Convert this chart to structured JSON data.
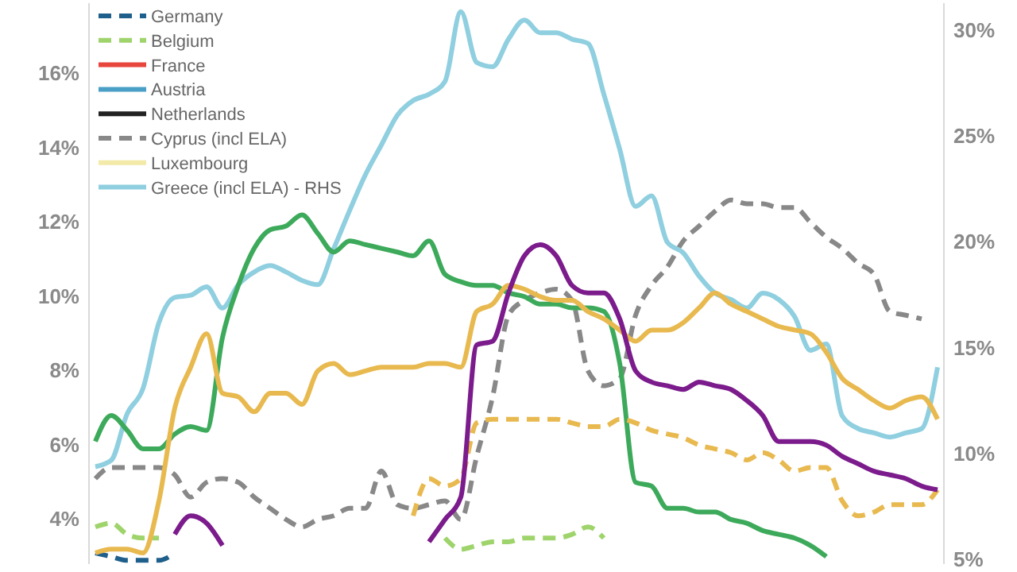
{
  "chart_data": {
    "type": "line",
    "categories": [
      null,
      null,
      null,
      null,
      null,
      null,
      null,
      null,
      null,
      null,
      null,
      null,
      null,
      null,
      null,
      null,
      null,
      null,
      null,
      null,
      null,
      null,
      null,
      null,
      null,
      null,
      null,
      null,
      null,
      null,
      null,
      null,
      null,
      null,
      null,
      null,
      null,
      null,
      null,
      null,
      null,
      null,
      null,
      null,
      null,
      null,
      null,
      null,
      null,
      null,
      null,
      null,
      null,
      null
    ],
    "ylim": [
      2.8,
      17.9
    ],
    "yticks": [
      {
        "value": 4,
        "label": "4%"
      },
      {
        "value": 6,
        "label": "6%"
      },
      {
        "value": 8,
        "label": "8%"
      },
      {
        "value": 10,
        "label": "10%"
      },
      {
        "value": 12,
        "label": "12%"
      },
      {
        "value": 14,
        "label": "14%"
      },
      {
        "value": 16,
        "label": "16%"
      }
    ],
    "y2lim": [
      4.8,
      31.3
    ],
    "y2ticks": [
      {
        "value": 5,
        "label": "5%"
      },
      {
        "value": 10,
        "label": "10%"
      },
      {
        "value": 15,
        "label": "15%"
      },
      {
        "value": 20,
        "label": "20%"
      },
      {
        "value": 25,
        "label": "25%"
      },
      {
        "value": 30,
        "label": "30%"
      }
    ],
    "legend": "top left",
    "grid": false,
    "series": [
      {
        "name": "Germany",
        "color": "#1f5f8b",
        "line_style": "dashed",
        "values": [
          3.1,
          3.0,
          2.9,
          2.9,
          2.9,
          3.1,
          null,
          null,
          null,
          null,
          null,
          null,
          null,
          null,
          null,
          null,
          null,
          null,
          null,
          null,
          null,
          null,
          null,
          null,
          null,
          null,
          null,
          null,
          null,
          null,
          null,
          null,
          null,
          null,
          null,
          null,
          null,
          null,
          null,
          null,
          null,
          null,
          null,
          null,
          null,
          null,
          null,
          null,
          null,
          null,
          null,
          null,
          null,
          null
        ]
      },
      {
        "name": "Belgium",
        "color": "#9ed46b",
        "line_style": "dashed",
        "values": [
          3.8,
          3.9,
          3.6,
          3.5,
          3.5,
          null,
          null,
          null,
          null,
          null,
          null,
          null,
          null,
          null,
          null,
          null,
          null,
          null,
          null,
          null,
          null,
          null,
          3.5,
          3.2,
          3.3,
          3.4,
          3.4,
          3.5,
          3.5,
          3.5,
          3.6,
          3.8,
          3.5,
          null,
          null,
          null,
          null,
          null,
          null,
          null,
          null,
          null,
          null,
          null,
          null,
          null,
          null,
          null,
          null,
          null,
          null,
          null,
          null,
          null
        ]
      },
      {
        "name": "France",
        "color": "#e8453c",
        "line_style": "solid",
        "values": [
          null,
          null,
          null,
          null,
          null,
          null,
          null,
          null,
          null,
          null,
          null,
          null,
          null,
          null,
          null,
          null,
          null,
          null,
          null,
          null,
          null,
          null,
          null,
          null,
          null,
          null,
          null,
          null,
          null,
          null,
          null,
          null,
          null,
          null,
          null,
          null,
          null,
          null,
          null,
          null,
          null,
          null,
          null,
          null,
          null,
          null,
          null,
          null,
          null,
          null,
          null,
          null,
          null,
          null
        ]
      },
      {
        "name": "Austria",
        "color": "#4a9fc6",
        "line_style": "solid",
        "values": [
          null,
          null,
          null,
          null,
          null,
          null,
          null,
          null,
          null,
          null,
          null,
          null,
          null,
          null,
          null,
          null,
          null,
          null,
          null,
          null,
          null,
          null,
          null,
          null,
          null,
          null,
          null,
          null,
          null,
          null,
          null,
          null,
          null,
          null,
          null,
          null,
          null,
          null,
          null,
          null,
          null,
          null,
          null,
          null,
          null,
          null,
          null,
          null,
          null,
          null,
          null,
          null,
          null,
          null
        ]
      },
      {
        "name": "Netherlands",
        "color": "#222222",
        "line_style": "solid",
        "values": [
          null,
          null,
          null,
          null,
          null,
          null,
          null,
          null,
          null,
          null,
          null,
          null,
          null,
          null,
          null,
          null,
          null,
          null,
          null,
          null,
          null,
          null,
          null,
          null,
          null,
          null,
          null,
          null,
          null,
          null,
          null,
          null,
          null,
          null,
          null,
          null,
          null,
          null,
          null,
          null,
          null,
          null,
          null,
          null,
          null,
          null,
          null,
          null,
          null,
          null,
          null,
          null,
          null,
          null
        ]
      },
      {
        "name": "Cyprus (incl ELA)",
        "color": "#888888",
        "line_style": "dashed",
        "values": [
          5.1,
          5.4,
          5.4,
          5.4,
          5.4,
          5.2,
          4.6,
          5.0,
          5.1,
          5.0,
          4.6,
          4.3,
          4.0,
          3.8,
          4.0,
          4.1,
          4.3,
          4.3,
          5.3,
          4.4,
          4.3,
          4.4,
          4.5,
          4.0,
          5.7,
          7.3,
          9.5,
          9.9,
          10.1,
          10.2,
          9.9,
          8.0,
          7.6,
          7.8,
          9.5,
          10.3,
          10.8,
          11.5,
          11.9,
          12.3,
          12.6,
          12.5,
          12.5,
          12.4,
          12.4,
          12.0,
          11.6,
          11.3,
          10.9,
          10.6,
          9.6,
          9.5,
          9.4,
          null
        ]
      },
      {
        "name": "Luxembourg",
        "color": "#f3e9a8",
        "line_style": "solid",
        "values": [
          null,
          null,
          null,
          null,
          null,
          null,
          null,
          null,
          null,
          null,
          null,
          null,
          null,
          null,
          null,
          null,
          null,
          null,
          null,
          null,
          null,
          null,
          null,
          null,
          null,
          null,
          null,
          null,
          null,
          null,
          null,
          null,
          null,
          null,
          null,
          null,
          null,
          null,
          null,
          null,
          null,
          null,
          null,
          null,
          null,
          null,
          null,
          null,
          null,
          null,
          null,
          null,
          null,
          null
        ]
      },
      {
        "name": "Greece (incl ELA) - RHS",
        "color": "#8fcfe0",
        "line_style": "solid",
        "axis": "y2",
        "values": [
          9.4,
          9.7,
          11.9,
          13.1,
          16.2,
          17.4,
          17.5,
          17.9,
          16.9,
          18.0,
          18.6,
          18.9,
          18.6,
          18.2,
          18.0,
          19.7,
          21.5,
          23.2,
          24.6,
          26.0,
          26.7,
          27.0,
          27.6,
          30.9,
          28.5,
          28.3,
          29.6,
          30.5,
          29.9,
          29.9,
          29.6,
          29.4,
          27.0,
          24.4,
          21.7,
          22.2,
          20.0,
          19.5,
          18.4,
          17.6,
          17.3,
          16.9,
          17.6,
          17.3,
          16.5,
          14.9,
          15.2,
          11.8,
          11.2,
          11.0,
          10.8,
          11.0,
          11.2,
          14.1
        ]
      },
      {
        "color": "#3daa5b",
        "line_style": "solid",
        "values": [
          6.1,
          6.8,
          6.4,
          5.9,
          5.9,
          6.3,
          6.5,
          6.4,
          8.9,
          10.3,
          11.3,
          11.8,
          11.9,
          12.2,
          11.7,
          11.2,
          11.5,
          11.4,
          11.3,
          11.2,
          11.1,
          11.5,
          10.6,
          10.4,
          10.3,
          10.3,
          10.1,
          10.0,
          9.8,
          9.8,
          9.7,
          9.7,
          9.6,
          8.2,
          5.0,
          4.9,
          4.3,
          4.3,
          4.2,
          4.2,
          4.0,
          3.9,
          3.7,
          3.6,
          3.5,
          3.3,
          3.0,
          null,
          null,
          null,
          null,
          null,
          null,
          null
        ]
      },
      {
        "color": "#e8b94f",
        "line_style": "solid",
        "values": [
          3.1,
          3.2,
          3.2,
          3.1,
          4.5,
          7.0,
          8.1,
          9.0,
          7.4,
          7.3,
          6.9,
          7.4,
          7.4,
          7.1,
          8.0,
          8.2,
          7.9,
          8.0,
          8.1,
          8.1,
          8.1,
          8.2,
          8.2,
          8.1,
          9.6,
          9.8,
          10.3,
          10.2,
          10.0,
          9.9,
          9.9,
          9.6,
          9.4,
          9.1,
          8.8,
          9.1,
          9.1,
          9.3,
          9.7,
          10.1,
          9.8,
          9.6,
          9.4,
          9.2,
          9.1,
          9.0,
          8.5,
          7.8,
          7.5,
          7.2,
          7.0,
          7.2,
          7.3,
          6.7
        ]
      },
      {
        "color": "#e8b94f",
        "line_style": "dashed",
        "values": [
          null,
          null,
          null,
          null,
          null,
          null,
          null,
          null,
          null,
          null,
          null,
          null,
          null,
          null,
          null,
          null,
          null,
          null,
          null,
          null,
          4.1,
          5.1,
          4.9,
          5.1,
          6.6,
          6.7,
          6.7,
          6.7,
          6.7,
          6.7,
          6.6,
          6.5,
          6.5,
          6.7,
          6.6,
          6.4,
          6.3,
          6.2,
          6.0,
          5.9,
          5.8,
          5.6,
          5.8,
          5.6,
          5.3,
          5.4,
          5.4,
          4.5,
          4.1,
          4.2,
          4.4,
          4.4,
          4.4,
          4.8
        ]
      },
      {
        "color": "#7b1b8c",
        "line_style": "solid",
        "values": [
          null,
          null,
          null,
          null,
          null,
          3.6,
          4.1,
          3.9,
          3.3,
          null,
          null,
          null,
          null,
          null,
          null,
          null,
          null,
          null,
          null,
          null,
          null,
          3.4,
          4.0,
          4.6,
          8.7,
          8.8,
          10.1,
          11.1,
          11.4,
          11.1,
          10.3,
          10.1,
          10.1,
          9.4,
          8.0,
          7.7,
          7.6,
          7.5,
          7.7,
          7.6,
          7.5,
          7.2,
          6.8,
          6.1,
          6.1,
          6.1,
          6.0,
          5.7,
          5.5,
          5.3,
          5.2,
          5.1,
          4.9,
          4.8
        ]
      }
    ]
  }
}
